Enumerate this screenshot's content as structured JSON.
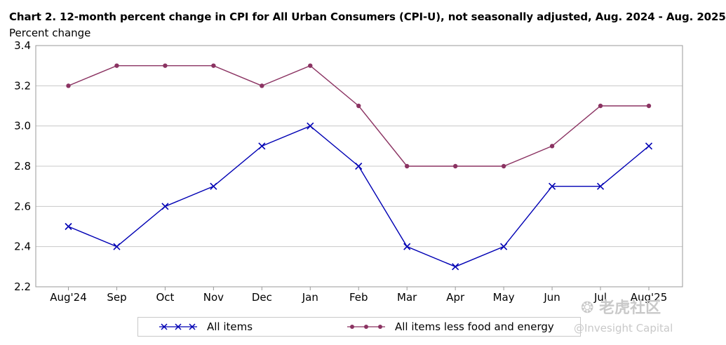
{
  "title": "Chart 2. 12-month percent change in CPI for All Urban Consumers (CPI-U), not seasonally adjusted, Aug. 2024 - Aug. 2025",
  "ylabel": "Percent change",
  "chart_data": {
    "type": "line",
    "title": "Chart 2. 12-month percent change in CPI for All Urban Consumers (CPI-U), not seasonally adjusted, Aug. 2024 - Aug. 2025",
    "ylabel": "Percent change",
    "xlabel": "",
    "categories": [
      "Aug'24",
      "Sep",
      "Oct",
      "Nov",
      "Dec",
      "Jan",
      "Feb",
      "Mar",
      "Apr",
      "May",
      "Jun",
      "Jul",
      "Aug'25"
    ],
    "ylim": [
      2.2,
      3.4
    ],
    "yticks": [
      2.2,
      2.4,
      2.6,
      2.8,
      3.0,
      3.2,
      3.4
    ],
    "ytick_labels": [
      "2.2",
      "2.4",
      "2.6",
      "2.8",
      "3.0",
      "3.2",
      "3.4"
    ],
    "grid": true,
    "legend_position": "bottom",
    "series": [
      {
        "name": "All items",
        "color": "#0000b4",
        "marker": "x",
        "values": [
          2.5,
          2.4,
          2.6,
          2.7,
          2.9,
          3.0,
          2.8,
          2.4,
          2.3,
          2.4,
          2.7,
          2.7,
          2.9
        ]
      },
      {
        "name": "All items less food and energy",
        "color": "#8b3362",
        "marker": "circle",
        "values": [
          3.2,
          3.3,
          3.3,
          3.3,
          3.2,
          3.3,
          3.1,
          2.8,
          2.8,
          2.8,
          2.9,
          3.1,
          3.1
        ]
      }
    ]
  },
  "legend": {
    "items": [
      {
        "label": "All items",
        "marker_icon": "x-marker-icon"
      },
      {
        "label": "All items less food and energy",
        "marker_icon": "circle-marker-icon"
      }
    ]
  },
  "watermark": {
    "line1": "老虎社区",
    "line2": "@Invesight Capital",
    "icon": "tiger-community-logo-icon"
  }
}
